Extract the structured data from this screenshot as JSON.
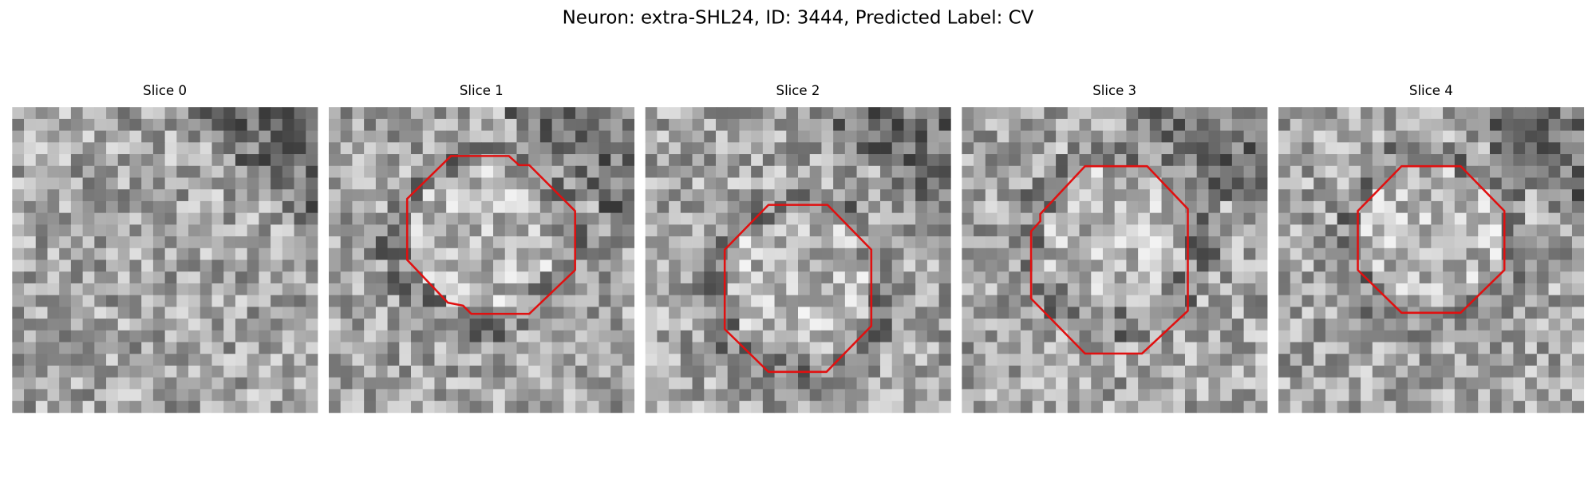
{
  "title": "Neuron: extra-SHL24, ID: 3444, Predicted Label: CV",
  "panels": [
    {
      "title": "Slice 0"
    },
    {
      "title": "Slice 1"
    },
    {
      "title": "Slice 2"
    },
    {
      "title": "Slice 3"
    },
    {
      "title": "Slice 4"
    }
  ]
}
